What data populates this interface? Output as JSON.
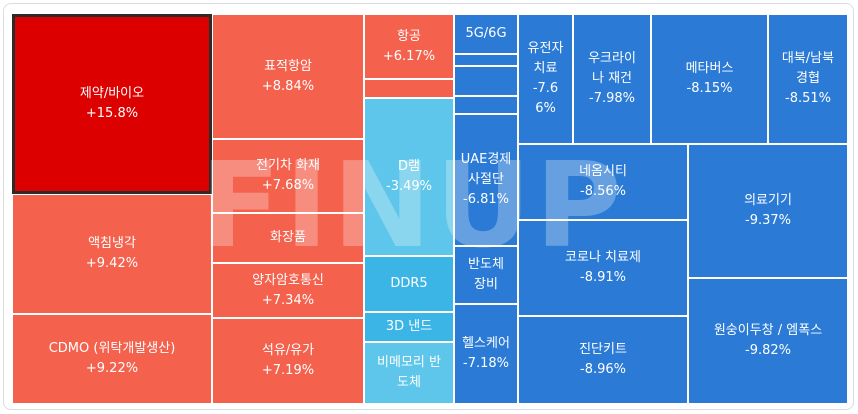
{
  "chart_data": {
    "type": "treemap",
    "watermark": "FINUP",
    "colors": {
      "strong_up": "#dd0000",
      "up": "#f4614d",
      "flat_light": "#f6d6d2",
      "down_light": "#5ec6ea",
      "down_mid": "#2c8be0",
      "down": "#2b7bd6",
      "border_selected": "#2b2b2b"
    },
    "tiles": [
      {
        "id": "pharma-bio",
        "label": "제약/바이오",
        "value": "+15.8%",
        "pct": 15.8,
        "color": "#dd0000",
        "selected": true
      },
      {
        "id": "liquid-cooling",
        "label": "액침냉각",
        "value": "+9.42%",
        "pct": 9.42,
        "color": "#f4614d"
      },
      {
        "id": "cdmo",
        "label": "CDMO (위탁개발생산)",
        "value": "+9.22%",
        "pct": 9.22,
        "color": "#f4614d"
      },
      {
        "id": "targeted-anticancer",
        "label": "표적항암",
        "value": "+8.84%",
        "pct": 8.84,
        "color": "#f4614d"
      },
      {
        "id": "ev-fire",
        "label": "전기차 화재",
        "value": "+7.68%",
        "pct": 7.68,
        "color": "#f4614d"
      },
      {
        "id": "cosmetics",
        "label": "화장품",
        "value": "",
        "color": "#f4614d"
      },
      {
        "id": "quantum-comm",
        "label": "양자암호통신",
        "value": "+7.34%",
        "pct": 7.34,
        "color": "#f4614d"
      },
      {
        "id": "oil",
        "label": "석유/유가",
        "value": "+7.19%",
        "pct": 7.19,
        "color": "#f4614d"
      },
      {
        "id": "aviation",
        "label": "항공",
        "value": "+6.17%",
        "pct": 6.17,
        "color": "#f4614d"
      },
      {
        "id": "small-red-1",
        "label": "",
        "value": "",
        "color": "#f4614d"
      },
      {
        "id": "dram",
        "label": "D램",
        "value": "-3.49%",
        "pct": -3.49,
        "color": "#5ec6ea"
      },
      {
        "id": "ddr5",
        "label": "DDR5",
        "value": "",
        "color": "#3ab5e6"
      },
      {
        "id": "3d-nand",
        "label": "3D 낸드",
        "value": "",
        "color": "#3ab5e6"
      },
      {
        "id": "non-memory",
        "label": "비메모리 반\n도체",
        "value": "",
        "color": "#5ec6ea"
      },
      {
        "id": "5g6g",
        "label": "5G/6G",
        "value": "",
        "color": "#2b7bd6"
      },
      {
        "id": "small-blue-1",
        "label": "",
        "value": "",
        "color": "#2b7bd6"
      },
      {
        "id": "small-blue-2",
        "label": "",
        "value": "",
        "color": "#2b7bd6"
      },
      {
        "id": "small-blue-3",
        "label": "",
        "value": "",
        "color": "#2b7bd6"
      },
      {
        "id": "uae-severance",
        "label": "UAE경제\n사절단",
        "value": "-6.81%",
        "pct": -6.81,
        "color": "#2b7bd6"
      },
      {
        "id": "semi-equip",
        "label": "반도체\n장비",
        "value": "",
        "color": "#2b7bd6"
      },
      {
        "id": "healthcare",
        "label": "헬스케어",
        "value": "-7.18%",
        "pct": -7.18,
        "color": "#2b7bd6"
      },
      {
        "id": "gene-therapy",
        "label": "유전자\n치료",
        "value": "-7.6\n6%",
        "pct": -7.66,
        "color": "#2b7bd6"
      },
      {
        "id": "ukraine-rebuild",
        "label": "우크라이\n나 재건",
        "value": "-7.98%",
        "pct": -7.98,
        "color": "#2b7bd6"
      },
      {
        "id": "metaverse",
        "label": "메타버스",
        "value": "-8.15%",
        "pct": -8.15,
        "color": "#2b7bd6"
      },
      {
        "id": "nk-cooperation",
        "label": "대북/남북\n경협",
        "value": "-8.51%",
        "pct": -8.51,
        "color": "#2b7bd6"
      },
      {
        "id": "neom-city",
        "label": "네옴시티",
        "value": "-8.56%",
        "pct": -8.56,
        "color": "#2b7bd6"
      },
      {
        "id": "covid-treatment",
        "label": "코로나 치료제",
        "value": "-8.91%",
        "pct": -8.91,
        "color": "#2b7bd6"
      },
      {
        "id": "diagnostic-kit",
        "label": "진단키트",
        "value": "-8.96%",
        "pct": -8.96,
        "color": "#2b7bd6"
      },
      {
        "id": "medical-device",
        "label": "의료기기",
        "value": "-9.37%",
        "pct": -9.37,
        "color": "#2b7bd6"
      },
      {
        "id": "monkeypox",
        "label": "원숭이두창 / 엠폭스",
        "value": "-9.82%",
        "pct": -9.82,
        "color": "#2b7bd6"
      }
    ]
  }
}
